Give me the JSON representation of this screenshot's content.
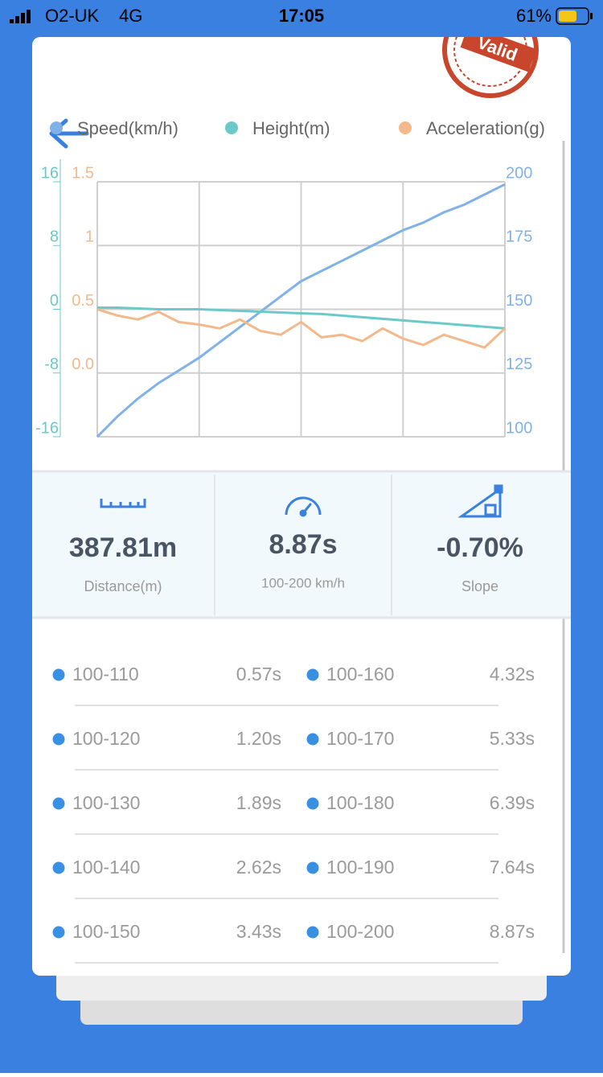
{
  "status": {
    "carrier": "O2-UK",
    "network": "4G",
    "time": "17:05",
    "battery": "61%"
  },
  "stamp": "Valid",
  "chart_data": {
    "type": "line",
    "series": [
      {
        "name": "Speed(km/h)",
        "color": "#7fb2e8",
        "values": [
          100,
          108,
          115,
          121,
          126,
          131,
          137,
          143,
          149,
          155,
          161,
          165,
          169,
          173,
          177,
          181,
          184,
          188,
          191,
          195,
          199
        ],
        "ylim": [
          100,
          200
        ],
        "yticks": [
          100,
          125,
          150,
          175,
          200
        ]
      },
      {
        "name": "Height(m)",
        "color": "#6cc9c9",
        "values": [
          0.2,
          0.2,
          0.1,
          0,
          0,
          0,
          -0.1,
          -0.2,
          -0.3,
          -0.4,
          -0.5,
          -0.6,
          -0.8,
          -1.0,
          -1.2,
          -1.4,
          -1.6,
          -1.8,
          -2.0,
          -2.2,
          -2.4
        ],
        "ylim": [
          -16,
          16
        ],
        "yticks": [
          -16,
          -8,
          0,
          8,
          16
        ]
      },
      {
        "name": "Acceleration(g)",
        "color": "#f3b98a",
        "values": [
          0.5,
          0.45,
          0.42,
          0.48,
          0.4,
          0.38,
          0.35,
          0.42,
          0.33,
          0.3,
          0.4,
          0.28,
          0.3,
          0.25,
          0.35,
          0.27,
          0.22,
          0.3,
          0.25,
          0.2,
          0.35
        ],
        "ylim": [
          -0.5,
          1.5
        ],
        "yticks": [
          {
            "value": 0,
            "label": "0.0"
          },
          0.5,
          1,
          1.5
        ]
      }
    ]
  },
  "stats": [
    {
      "value": "387.81m",
      "label": "Distance(m)"
    },
    {
      "value": "8.87s",
      "label": "100-200 km/h"
    },
    {
      "value": "-0.70%",
      "label": "Slope"
    }
  ],
  "splits": [
    {
      "range": "100-110",
      "time": "0.57s"
    },
    {
      "range": "100-160",
      "time": "4.32s"
    },
    {
      "range": "100-120",
      "time": "1.20s"
    },
    {
      "range": "100-170",
      "time": "5.33s"
    },
    {
      "range": "100-130",
      "time": "1.89s"
    },
    {
      "range": "100-180",
      "time": "6.39s"
    },
    {
      "range": "100-140",
      "time": "2.62s"
    },
    {
      "range": "100-190",
      "time": "7.64s"
    },
    {
      "range": "100-150",
      "time": "3.43s"
    },
    {
      "range": "100-200",
      "time": "8.87s"
    }
  ]
}
